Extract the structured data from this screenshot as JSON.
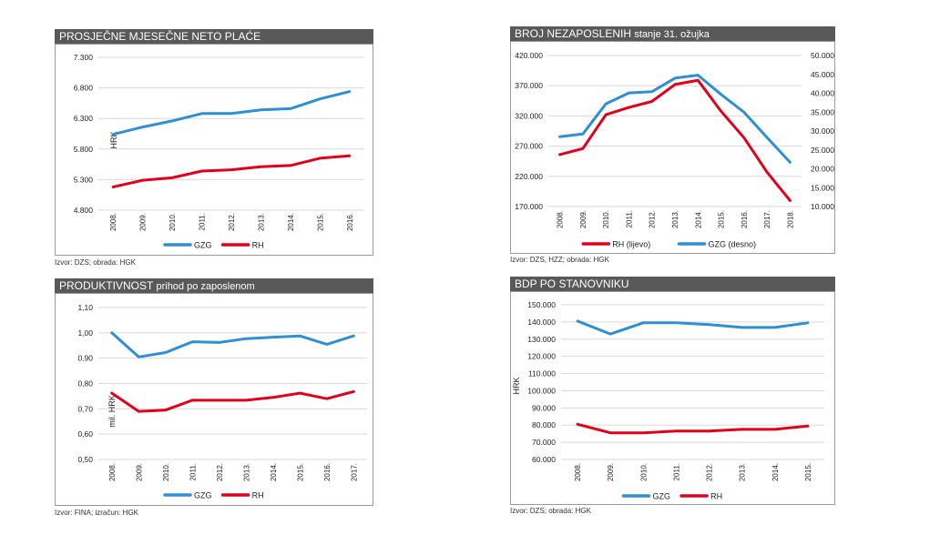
{
  "colors": {
    "gzg": "#2e8fd2",
    "rh": "#e3001b",
    "title_bg": "#58595b",
    "grid": "#d9d9d9"
  },
  "panels": [
    {
      "title": "PROSJEČNE MJESEČNE NETO PLAĆE",
      "subtitle": "",
      "source": "Izvor: DZS; obrada: HGK"
    },
    {
      "title": "BROJ NEZAPOSLENIH",
      "subtitle": "stanje 31. ožujka",
      "source": "Izvor: DZS, HZZ; obrada: HGK"
    },
    {
      "title": "PRODUKTIVNOST",
      "subtitle": "prihod po zaposlenom",
      "source": "Izvor: FINA; izračun: HGK"
    },
    {
      "title": "BDP PO STANOVNIKU",
      "subtitle": "",
      "source": "Izvor: DZS; obrada: HGK"
    }
  ],
  "chart_data": [
    {
      "type": "line",
      "title": "PROSJEČNE MJESEČNE NETO PLAĆE",
      "ylabel": "HRK",
      "x": [
        "2008.",
        "2009.",
        "2010.",
        "2011.",
        "2012.",
        "2013.",
        "2014.",
        "2015.",
        "2016."
      ],
      "ylim": [
        4800,
        7300
      ],
      "yticks": [
        4800,
        5300,
        5800,
        6300,
        6800,
        7300
      ],
      "ytick_labels": [
        "4.800",
        "5.300",
        "5.800",
        "6.300",
        "6.800",
        "7.300"
      ],
      "legend": [
        "GZG",
        "RH"
      ],
      "series": [
        {
          "name": "GZG",
          "color": "#2e8fd2",
          "values": [
            6040,
            6160,
            6260,
            6380,
            6380,
            6440,
            6460,
            6620,
            6740
          ]
        },
        {
          "name": "RH",
          "color": "#e3001b",
          "values": [
            5180,
            5290,
            5330,
            5440,
            5460,
            5510,
            5530,
            5650,
            5690
          ]
        }
      ]
    },
    {
      "type": "line",
      "title": "BROJ NEZAPOSLENIH",
      "x": [
        "2008.",
        "2009.",
        "2010.",
        "2011.",
        "2012.",
        "2013.",
        "2014.",
        "2015.",
        "2016.",
        "2017.",
        "2018."
      ],
      "ylim": [
        170000,
        420000
      ],
      "yticks": [
        170000,
        220000,
        270000,
        320000,
        370000,
        420000
      ],
      "ytick_labels": [
        "170.000",
        "220.000",
        "270.000",
        "320.000",
        "370.000",
        "420.000"
      ],
      "y2lim": [
        10000,
        50000
      ],
      "y2ticks": [
        10000,
        15000,
        20000,
        25000,
        30000,
        35000,
        40000,
        45000,
        50000
      ],
      "y2tick_labels": [
        "10.000",
        "15.000",
        "20.000",
        "25.000",
        "30.000",
        "35.000",
        "40.000",
        "45.000",
        "50.000"
      ],
      "legend": [
        "RH (lijevo)",
        "GZG (desno)"
      ],
      "series": [
        {
          "name": "RH (lijevo)",
          "axis": "left",
          "color": "#e3001b",
          "values": [
            256000,
            266000,
            322000,
            334000,
            344000,
            372000,
            379000,
            328000,
            284000,
            227000,
            180000
          ]
        },
        {
          "name": "GZG (desno)",
          "axis": "right",
          "color": "#2e8fd2",
          "values": [
            28500,
            29200,
            37200,
            40100,
            40400,
            44000,
            44800,
            39700,
            35000,
            28300,
            21700
          ]
        }
      ]
    },
    {
      "type": "line",
      "title": "PRODUKTIVNOST",
      "ylabel": "mil. HRK",
      "x": [
        "2008.",
        "2009.",
        "2010.",
        "2011.",
        "2012.",
        "2013.",
        "2014.",
        "2015.",
        "2016.",
        "2017."
      ],
      "ylim": [
        0.5,
        1.1
      ],
      "yticks": [
        0.5,
        0.6,
        0.7,
        0.8,
        0.9,
        1.0,
        1.1
      ],
      "ytick_labels": [
        "0,50",
        "0,60",
        "0,70",
        "0,80",
        "0,90",
        "1,00",
        "1,10"
      ],
      "legend": [
        "GZG",
        "RH"
      ],
      "series": [
        {
          "name": "GZG",
          "color": "#2e8fd2",
          "values": [
            1.0,
            0.905,
            0.922,
            0.965,
            0.962,
            0.977,
            0.983,
            0.988,
            0.955,
            0.988
          ]
        },
        {
          "name": "RH",
          "color": "#e3001b",
          "values": [
            0.762,
            0.69,
            0.695,
            0.734,
            0.734,
            0.734,
            0.745,
            0.762,
            0.74,
            0.768
          ]
        }
      ]
    },
    {
      "type": "line",
      "title": "BDP PO STANOVNIKU",
      "ylabel": "HRK",
      "x": [
        "2008.",
        "2009.",
        "2010.",
        "2011.",
        "2012.",
        "2013.",
        "2014.",
        "2015."
      ],
      "ylim": [
        60000,
        150000
      ],
      "yticks": [
        60000,
        70000,
        80000,
        90000,
        100000,
        110000,
        120000,
        130000,
        140000,
        150000
      ],
      "ytick_labels": [
        "60.000",
        "70.000",
        "80.000",
        "90.000",
        "100.000",
        "110.000",
        "120.000",
        "130.000",
        "140.000",
        "150.000"
      ],
      "legend": [
        "GZG",
        "RH"
      ],
      "series": [
        {
          "name": "GZG",
          "color": "#2e8fd2",
          "values": [
            140500,
            133000,
            139500,
            139500,
            138500,
            136800,
            136800,
            139500
          ]
        },
        {
          "name": "RH",
          "color": "#e3001b",
          "values": [
            80500,
            75500,
            75500,
            76500,
            76500,
            77500,
            77500,
            79500
          ]
        }
      ]
    }
  ]
}
